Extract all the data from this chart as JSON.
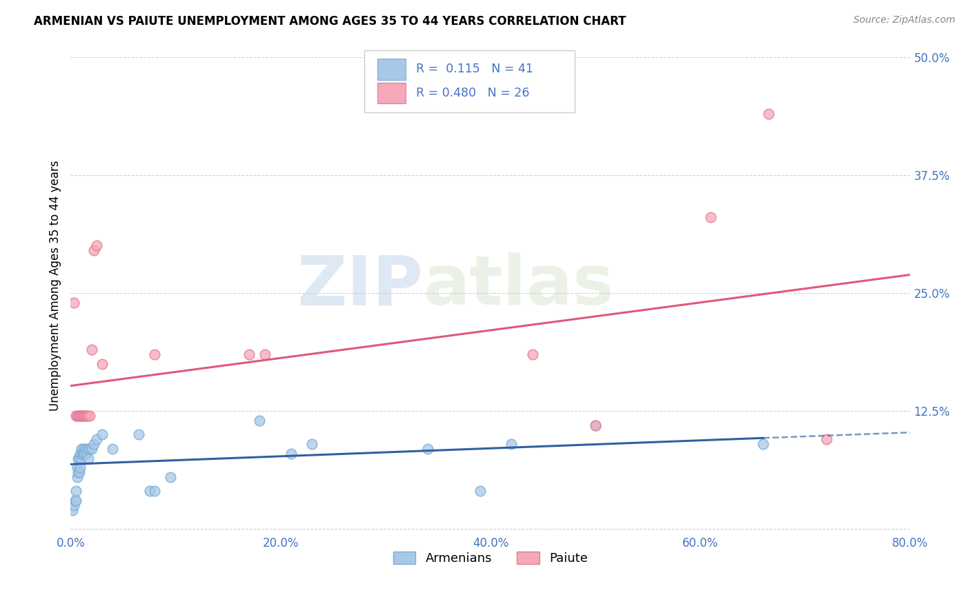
{
  "title": "ARMENIAN VS PAIUTE UNEMPLOYMENT AMONG AGES 35 TO 44 YEARS CORRELATION CHART",
  "source": "Source: ZipAtlas.com",
  "ylabel": "Unemployment Among Ages 35 to 44 years",
  "xlim": [
    0.0,
    0.8
  ],
  "ylim": [
    -0.005,
    0.52
  ],
  "xticks": [
    0.0,
    0.2,
    0.4,
    0.6,
    0.8
  ],
  "xticklabels": [
    "0.0%",
    "20.0%",
    "40.0%",
    "60.0%",
    "80.0%"
  ],
  "yticks": [
    0.0,
    0.125,
    0.25,
    0.375,
    0.5
  ],
  "yticklabels_right": [
    "",
    "12.5%",
    "25.0%",
    "37.5%",
    "50.0%"
  ],
  "watermark_zip": "ZIP",
  "watermark_atlas": "atlas",
  "legend_R_armenian": "0.115",
  "legend_N_armenian": "41",
  "legend_R_paiute": "0.480",
  "legend_N_paiute": "26",
  "armenian_color": "#a8c8e8",
  "armenian_edge_color": "#7aadd4",
  "paiute_color": "#f4a8b8",
  "paiute_edge_color": "#e87898",
  "armenian_line_color": "#3060a0",
  "paiute_line_color": "#e05878",
  "background_color": "#ffffff",
  "grid_color": "#cccccc",
  "tick_color": "#4472c4",
  "armenian_x": [
    0.002,
    0.003,
    0.004,
    0.005,
    0.005,
    0.006,
    0.006,
    0.007,
    0.007,
    0.008,
    0.008,
    0.009,
    0.009,
    0.01,
    0.01,
    0.011,
    0.012,
    0.012,
    0.013,
    0.014,
    0.015,
    0.016,
    0.017,
    0.018,
    0.02,
    0.022,
    0.025,
    0.03,
    0.04,
    0.065,
    0.075,
    0.08,
    0.095,
    0.18,
    0.21,
    0.23,
    0.34,
    0.39,
    0.42,
    0.5,
    0.66
  ],
  "armenian_y": [
    0.02,
    0.025,
    0.03,
    0.03,
    0.04,
    0.055,
    0.065,
    0.06,
    0.075,
    0.06,
    0.075,
    0.065,
    0.08,
    0.075,
    0.085,
    0.08,
    0.085,
    0.08,
    0.08,
    0.085,
    0.08,
    0.085,
    0.075,
    0.085,
    0.085,
    0.09,
    0.095,
    0.1,
    0.085,
    0.1,
    0.04,
    0.04,
    0.055,
    0.115,
    0.08,
    0.09,
    0.085,
    0.04,
    0.09,
    0.11,
    0.09
  ],
  "paiute_x": [
    0.003,
    0.005,
    0.006,
    0.007,
    0.008,
    0.009,
    0.01,
    0.011,
    0.012,
    0.013,
    0.014,
    0.015,
    0.016,
    0.018,
    0.02,
    0.022,
    0.025,
    0.03,
    0.08,
    0.17,
    0.185,
    0.44,
    0.5,
    0.61,
    0.665,
    0.72
  ],
  "paiute_y": [
    0.24,
    0.12,
    0.12,
    0.12,
    0.12,
    0.12,
    0.12,
    0.12,
    0.12,
    0.12,
    0.12,
    0.12,
    0.12,
    0.12,
    0.19,
    0.295,
    0.3,
    0.175,
    0.185,
    0.185,
    0.185,
    0.185,
    0.11,
    0.33,
    0.44,
    0.095
  ]
}
